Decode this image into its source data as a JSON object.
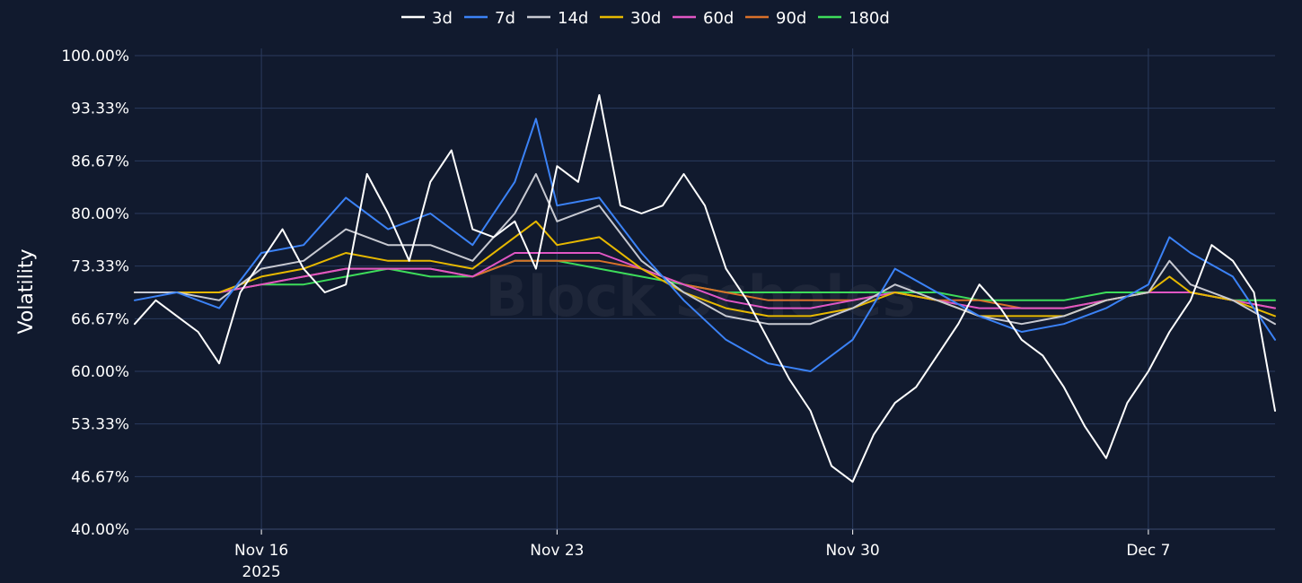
{
  "chart_data": {
    "type": "line",
    "watermark": "Block Scholes",
    "ylabel": "Volatility",
    "xlabel": "",
    "ylim": [
      40,
      100
    ],
    "y_ticks": [
      "100.00%",
      "93.33%",
      "86.67%",
      "80.00%",
      "73.33%",
      "66.67%",
      "60.00%",
      "53.33%",
      "46.67%",
      "40.00%"
    ],
    "x_range_days": [
      "2025-11-13",
      "2025-12-10"
    ],
    "x_ticks": [
      {
        "date": "2025-11-16",
        "label": "Nov 16",
        "sublabel": "2025"
      },
      {
        "date": "2025-11-23",
        "label": "Nov 23",
        "sublabel": ""
      },
      {
        "date": "2025-11-30",
        "label": "Nov 30",
        "sublabel": ""
      },
      {
        "date": "2025-12-07",
        "label": "Dec 7",
        "sublabel": ""
      }
    ],
    "grid": true,
    "legend_position": "top-center",
    "series": [
      {
        "name": "3d",
        "color": "#ffffff",
        "x": [
          "2025-11-13",
          "2025-11-13T12",
          "2025-11-14",
          "2025-11-14T12",
          "2025-11-15",
          "2025-11-15T12",
          "2025-11-16",
          "2025-11-16T12",
          "2025-11-17",
          "2025-11-17T12",
          "2025-11-18",
          "2025-11-18T12",
          "2025-11-19",
          "2025-11-19T12",
          "2025-11-20",
          "2025-11-20T12",
          "2025-11-21",
          "2025-11-21T12",
          "2025-11-22",
          "2025-11-22T12",
          "2025-11-23",
          "2025-11-23T12",
          "2025-11-24",
          "2025-11-24T12",
          "2025-11-25",
          "2025-11-25T12",
          "2025-11-26",
          "2025-11-26T12",
          "2025-11-27",
          "2025-11-27T12",
          "2025-11-28",
          "2025-11-28T12",
          "2025-11-29",
          "2025-11-29T12",
          "2025-11-30",
          "2025-11-30T12",
          "2025-12-01",
          "2025-12-01T12",
          "2025-12-02",
          "2025-12-02T12",
          "2025-12-03",
          "2025-12-03T12",
          "2025-12-04",
          "2025-12-04T12",
          "2025-12-05",
          "2025-12-05T12",
          "2025-12-06",
          "2025-12-06T12",
          "2025-12-07",
          "2025-12-07T12",
          "2025-12-08",
          "2025-12-08T12",
          "2025-12-09",
          "2025-12-09T12",
          "2025-12-10"
        ],
        "values": [
          66,
          69,
          67,
          65,
          61,
          70,
          74,
          78,
          73,
          70,
          71,
          85,
          80,
          74,
          84,
          88,
          78,
          77,
          79,
          73,
          86,
          84,
          95,
          81,
          80,
          81,
          85,
          81,
          73,
          69,
          64,
          59,
          55,
          48,
          46,
          52,
          56,
          58,
          62,
          66,
          71,
          68,
          64,
          62,
          58,
          53,
          49,
          56,
          60,
          65,
          69,
          76,
          74,
          70,
          55
        ]
      },
      {
        "name": "7d",
        "color": "#3b82f6",
        "x": [
          "2025-11-13",
          "2025-11-14",
          "2025-11-15",
          "2025-11-16",
          "2025-11-17",
          "2025-11-18",
          "2025-11-19",
          "2025-11-20",
          "2025-11-21",
          "2025-11-22",
          "2025-11-22T12",
          "2025-11-23",
          "2025-11-24",
          "2025-11-25",
          "2025-11-26",
          "2025-11-27",
          "2025-11-28",
          "2025-11-29",
          "2025-11-30",
          "2025-12-01",
          "2025-12-02",
          "2025-12-03",
          "2025-12-04",
          "2025-12-05",
          "2025-12-06",
          "2025-12-07",
          "2025-12-07T12",
          "2025-12-08",
          "2025-12-09",
          "2025-12-10"
        ],
        "values": [
          69,
          70,
          68,
          75,
          76,
          82,
          78,
          80,
          76,
          84,
          92,
          81,
          82,
          75,
          69,
          64,
          61,
          60,
          64,
          73,
          70,
          67,
          65,
          66,
          68,
          71,
          77,
          75,
          72,
          64
        ]
      },
      {
        "name": "14d",
        "color": "#c7c9d1",
        "x": [
          "2025-11-13",
          "2025-11-14",
          "2025-11-15",
          "2025-11-16",
          "2025-11-17",
          "2025-11-18",
          "2025-11-19",
          "2025-11-20",
          "2025-11-21",
          "2025-11-22",
          "2025-11-22T12",
          "2025-11-23",
          "2025-11-24",
          "2025-11-25",
          "2025-11-26",
          "2025-11-27",
          "2025-11-28",
          "2025-11-29",
          "2025-11-30",
          "2025-12-01",
          "2025-12-02",
          "2025-12-03",
          "2025-12-04",
          "2025-12-05",
          "2025-12-06",
          "2025-12-07",
          "2025-12-07T12",
          "2025-12-08",
          "2025-12-09",
          "2025-12-10"
        ],
        "values": [
          70,
          70,
          69,
          73,
          74,
          78,
          76,
          76,
          74,
          80,
          85,
          79,
          81,
          74,
          70,
          67,
          66,
          66,
          68,
          71,
          69,
          67,
          66,
          67,
          69,
          70,
          74,
          71,
          69,
          66
        ]
      },
      {
        "name": "30d",
        "color": "#e6b800",
        "x": [
          "2025-11-13",
          "2025-11-14",
          "2025-11-15",
          "2025-11-16",
          "2025-11-17",
          "2025-11-18",
          "2025-11-19",
          "2025-11-20",
          "2025-11-21",
          "2025-11-22",
          "2025-11-22T12",
          "2025-11-23",
          "2025-11-24",
          "2025-11-25",
          "2025-11-26",
          "2025-11-27",
          "2025-11-28",
          "2025-11-29",
          "2025-11-30",
          "2025-12-01",
          "2025-12-02",
          "2025-12-03",
          "2025-12-04",
          "2025-12-05",
          "2025-12-06",
          "2025-12-07",
          "2025-12-07T12",
          "2025-12-08",
          "2025-12-09",
          "2025-12-10"
        ],
        "values": [
          70,
          70,
          70,
          72,
          73,
          75,
          74,
          74,
          73,
          77,
          79,
          76,
          77,
          73,
          70,
          68,
          67,
          67,
          68,
          70,
          69,
          67,
          67,
          67,
          69,
          70,
          72,
          70,
          69,
          67
        ]
      },
      {
        "name": "60d",
        "color": "#e056c4",
        "x": [
          "2025-11-13",
          "2025-11-14",
          "2025-11-15",
          "2025-11-16",
          "2025-11-17",
          "2025-11-18",
          "2025-11-19",
          "2025-11-20",
          "2025-11-21",
          "2025-11-22",
          "2025-11-23",
          "2025-11-24",
          "2025-11-25",
          "2025-11-26",
          "2025-11-27",
          "2025-11-28",
          "2025-11-29",
          "2025-11-30",
          "2025-12-01",
          "2025-12-02",
          "2025-12-03",
          "2025-12-04",
          "2025-12-05",
          "2025-12-06",
          "2025-12-07",
          "2025-12-08",
          "2025-12-09",
          "2025-12-10"
        ],
        "values": [
          70,
          70,
          70,
          71,
          72,
          73,
          73,
          73,
          72,
          75,
          75,
          75,
          73,
          71,
          69,
          68,
          68,
          69,
          70,
          69,
          68,
          68,
          68,
          69,
          70,
          70,
          69,
          68
        ]
      },
      {
        "name": "90d",
        "color": "#d9702a",
        "x": [
          "2025-11-13",
          "2025-11-14",
          "2025-11-15",
          "2025-11-16",
          "2025-11-17",
          "2025-11-18",
          "2025-11-19",
          "2025-11-20",
          "2025-11-21",
          "2025-11-22",
          "2025-11-23",
          "2025-11-24",
          "2025-11-25",
          "2025-11-26",
          "2025-11-27",
          "2025-11-28",
          "2025-11-29",
          "2025-11-30",
          "2025-12-01",
          "2025-12-02",
          "2025-12-03",
          "2025-12-04",
          "2025-12-05",
          "2025-12-06",
          "2025-12-07",
          "2025-12-08",
          "2025-12-09",
          "2025-12-10"
        ],
        "values": [
          70,
          70,
          70,
          71,
          72,
          73,
          73,
          73,
          72,
          74,
          74,
          74,
          73,
          71,
          70,
          69,
          69,
          69,
          70,
          69,
          69,
          68,
          68,
          69,
          70,
          70,
          69,
          68
        ]
      },
      {
        "name": "180d",
        "color": "#3ddc5a",
        "x": [
          "2025-11-13",
          "2025-11-14",
          "2025-11-15",
          "2025-11-16",
          "2025-11-17",
          "2025-11-18",
          "2025-11-19",
          "2025-11-20",
          "2025-11-21",
          "2025-11-22",
          "2025-11-23",
          "2025-11-24",
          "2025-11-25",
          "2025-11-26",
          "2025-11-27",
          "2025-11-28",
          "2025-11-29",
          "2025-11-30",
          "2025-12-01",
          "2025-12-02",
          "2025-12-03",
          "2025-12-04",
          "2025-12-05",
          "2025-12-06",
          "2025-12-07",
          "2025-12-08",
          "2025-12-09",
          "2025-12-10"
        ],
        "values": [
          70,
          70,
          70,
          71,
          71,
          72,
          73,
          72,
          72,
          74,
          74,
          73,
          72,
          71,
          70,
          70,
          70,
          70,
          70,
          70,
          69,
          69,
          69,
          70,
          70,
          70,
          69,
          69
        ]
      }
    ]
  }
}
